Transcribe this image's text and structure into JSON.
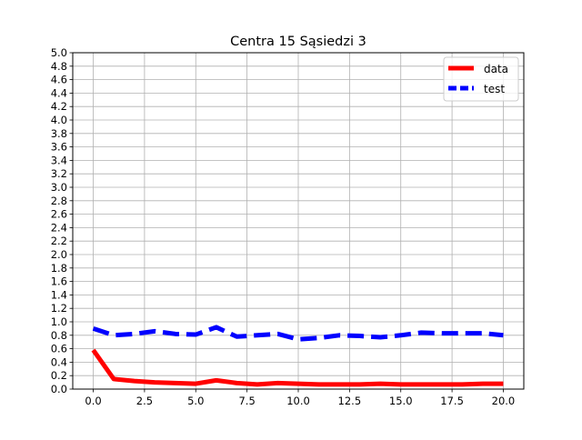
{
  "chart_data": {
    "type": "line",
    "title": "Centra 15 Sąsiedzi 3",
    "xlabel": "",
    "ylabel": "",
    "xlim": [
      -1.0,
      21.0
    ],
    "ylim": [
      0.0,
      5.0
    ],
    "x_ticks": [
      0.0,
      2.5,
      5.0,
      7.5,
      10.0,
      12.5,
      15.0,
      17.5,
      20.0
    ],
    "x_tick_labels": [
      "0.0",
      "2.5",
      "5.0",
      "7.5",
      "10.0",
      "12.5",
      "15.0",
      "17.5",
      "20.0"
    ],
    "y_ticks": [
      0.0,
      0.2,
      0.4,
      0.6,
      0.8,
      1.0,
      1.2,
      1.4,
      1.6,
      1.8,
      2.0,
      2.2,
      2.4,
      2.6,
      2.8,
      3.0,
      3.2,
      3.4,
      3.6,
      3.8,
      4.0,
      4.2,
      4.4,
      4.6,
      4.8,
      5.0
    ],
    "y_tick_labels": [
      "0.0",
      "0.2",
      "0.4",
      "0.6",
      "0.8",
      "1.0",
      "1.2",
      "1.4",
      "1.6",
      "1.8",
      "2.0",
      "2.2",
      "2.4",
      "2.6",
      "2.8",
      "3.0",
      "3.2",
      "3.4",
      "3.6",
      "3.8",
      "4.0",
      "4.2",
      "4.4",
      "4.6",
      "4.8",
      "5.0"
    ],
    "grid": true,
    "legend_position": "top-right",
    "x": [
      0,
      1,
      2,
      3,
      4,
      5,
      6,
      7,
      8,
      9,
      10,
      11,
      12,
      13,
      14,
      15,
      16,
      17,
      18,
      19,
      20
    ],
    "series": [
      {
        "name": "data",
        "color": "#ff0000",
        "style": "solid",
        "values": [
          0.58,
          0.15,
          0.12,
          0.1,
          0.09,
          0.08,
          0.13,
          0.09,
          0.07,
          0.09,
          0.08,
          0.07,
          0.07,
          0.07,
          0.08,
          0.07,
          0.07,
          0.07,
          0.07,
          0.08,
          0.08
        ]
      },
      {
        "name": "test",
        "color": "#0000ff",
        "style": "dashed",
        "values": [
          0.9,
          0.8,
          0.82,
          0.86,
          0.82,
          0.81,
          0.92,
          0.78,
          0.8,
          0.82,
          0.74,
          0.76,
          0.8,
          0.79,
          0.77,
          0.8,
          0.84,
          0.83,
          0.83,
          0.83,
          0.8
        ]
      }
    ]
  }
}
